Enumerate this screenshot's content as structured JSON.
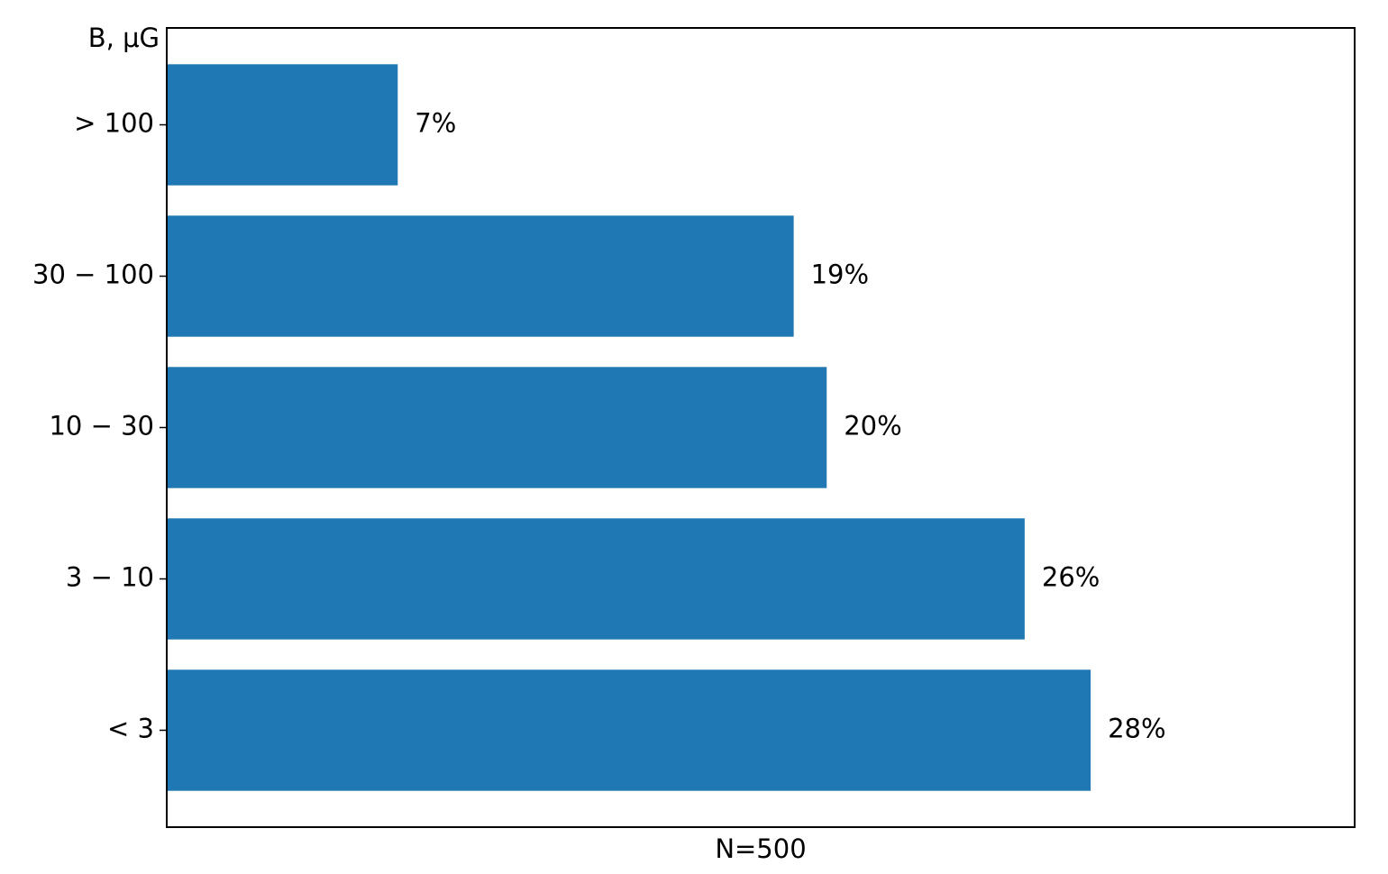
{
  "chart_data": {
    "type": "barh",
    "categories": [
      "< 3",
      "3 − 10",
      "10 − 30",
      "30 − 100",
      "> 100"
    ],
    "values": [
      28,
      26,
      20,
      19,
      7
    ],
    "value_labels": [
      "28%",
      "26%",
      "20%",
      "19%",
      "7%"
    ],
    "color": "#1f77b4",
    "xlim": [
      0,
      36
    ],
    "xlabel": "N=500",
    "ylabel": "B, μG"
  }
}
